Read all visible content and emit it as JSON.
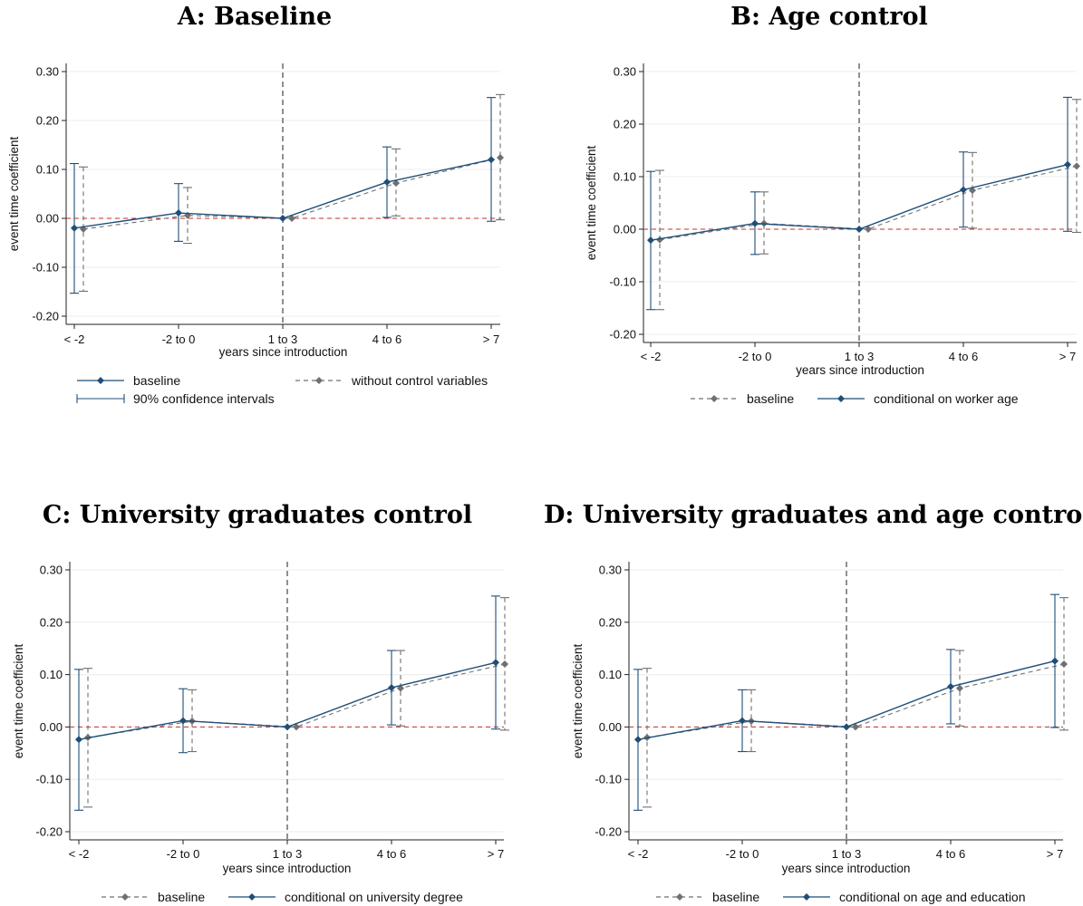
{
  "chart_data": [
    {
      "type": "line",
      "title": "A: Baseline",
      "xlabel": "years since introduction",
      "ylabel": "event time coefficient",
      "categories": [
        "< -2",
        "-2 to 0",
        "1 to 3",
        "4 to 6",
        "> 7"
      ],
      "ylim": [
        -0.2,
        0.3
      ],
      "yticks": [
        "0.30",
        "0.20",
        "0.10",
        "0.00",
        "-0.10",
        "-0.20"
      ],
      "grid": true,
      "reference_line_y": 0,
      "reference_line_x": "1 to 3",
      "series": [
        {
          "name": "baseline",
          "style": "solid",
          "color": "#1f4e79",
          "values": [
            -0.02,
            0.011,
            0.0,
            0.074,
            0.12
          ],
          "ci_low": [
            -0.153,
            -0.047,
            0.0,
            0.002,
            -0.006
          ],
          "ci_high": [
            0.112,
            0.071,
            0.0,
            0.146,
            0.247
          ]
        },
        {
          "name": "without control variables",
          "style": "dashed",
          "color": "#707070",
          "values": [
            -0.022,
            0.006,
            0.0,
            0.072,
            0.124
          ],
          "ci_low": [
            -0.149,
            -0.051,
            0.0,
            0.005,
            -0.003
          ],
          "ci_high": [
            0.105,
            0.063,
            0.0,
            0.142,
            0.253
          ]
        }
      ],
      "legend": {
        "rows": [
          [
            {
              "label": "baseline",
              "style": "solid-diamond"
            },
            {
              "label": "without control variables",
              "style": "dashed-diamond"
            }
          ],
          [
            {
              "label": "90% confidence intervals",
              "style": "ci"
            }
          ]
        ]
      }
    },
    {
      "type": "line",
      "title": "B: Age control",
      "xlabel": "years since introduction",
      "ylabel": "event time coefficient",
      "categories": [
        "< -2",
        "-2 to 0",
        "1 to 3",
        "4 to 6",
        "> 7"
      ],
      "ylim": [
        -0.2,
        0.3
      ],
      "yticks": [
        "0.30",
        "0.20",
        "0.10",
        "0.00",
        "-0.10",
        "-0.20"
      ],
      "grid": true,
      "reference_line_y": 0,
      "reference_line_x": "1 to 3",
      "series": [
        {
          "name": "conditional on worker age",
          "style": "solid",
          "color": "#1f4e79",
          "values": [
            -0.021,
            0.011,
            0.0,
            0.075,
            0.123
          ],
          "ci_low": [
            -0.153,
            -0.048,
            0.0,
            0.004,
            -0.004
          ],
          "ci_high": [
            0.11,
            0.071,
            0.0,
            0.147,
            0.251
          ]
        },
        {
          "name": "baseline",
          "style": "dashed",
          "color": "#707070",
          "values": [
            -0.02,
            0.011,
            0.0,
            0.074,
            0.12
          ],
          "ci_low": [
            -0.153,
            -0.047,
            0.0,
            0.002,
            -0.006
          ],
          "ci_high": [
            0.112,
            0.071,
            0.0,
            0.146,
            0.247
          ]
        }
      ],
      "legend": {
        "rows": [
          [
            {
              "label": "baseline",
              "style": "dashed-diamond"
            },
            {
              "label": "conditional on worker age",
              "style": "solid-diamond"
            }
          ]
        ]
      }
    },
    {
      "type": "line",
      "title": "C: University graduates control",
      "xlabel": "years since introduction",
      "ylabel": "event time coefficient",
      "categories": [
        "< -2",
        "-2 to 0",
        "1 to 3",
        "4 to 6",
        "> 7"
      ],
      "ylim": [
        -0.2,
        0.3
      ],
      "yticks": [
        "0.30",
        "0.20",
        "0.10",
        "0.00",
        "-0.10",
        "-0.20"
      ],
      "grid": true,
      "reference_line_y": 0,
      "reference_line_x": "1 to 3",
      "series": [
        {
          "name": "conditional on university degree",
          "style": "solid",
          "color": "#1f4e79",
          "values": [
            -0.024,
            0.012,
            0.0,
            0.075,
            0.123
          ],
          "ci_low": [
            -0.159,
            -0.049,
            0.0,
            0.004,
            -0.004
          ],
          "ci_high": [
            0.11,
            0.073,
            0.0,
            0.146,
            0.25
          ]
        },
        {
          "name": "baseline",
          "style": "dashed",
          "color": "#707070",
          "values": [
            -0.02,
            0.011,
            0.0,
            0.074,
            0.12
          ],
          "ci_low": [
            -0.153,
            -0.047,
            0.0,
            0.002,
            -0.006
          ],
          "ci_high": [
            0.112,
            0.071,
            0.0,
            0.146,
            0.247
          ]
        }
      ],
      "legend": {
        "rows": [
          [
            {
              "label": "baseline",
              "style": "dashed-diamond"
            },
            {
              "label": "conditional on university degree",
              "style": "solid-diamond"
            }
          ]
        ]
      }
    },
    {
      "type": "line",
      "title": "D: University graduates and age control",
      "xlabel": "years since introduction",
      "ylabel": "event time coefficient",
      "categories": [
        "< -2",
        "-2 to 0",
        "1 to 3",
        "4 to 6",
        "> 7"
      ],
      "ylim": [
        -0.2,
        0.3
      ],
      "yticks": [
        "0.30",
        "0.20",
        "0.10",
        "0.00",
        "-0.10",
        "-0.20"
      ],
      "grid": true,
      "reference_line_y": 0,
      "reference_line_x": "1 to 3",
      "series": [
        {
          "name": "conditional on age and education",
          "style": "solid",
          "color": "#1f4e79",
          "values": [
            -0.024,
            0.012,
            0.0,
            0.077,
            0.126
          ],
          "ci_low": [
            -0.159,
            -0.047,
            0.0,
            0.006,
            -0.001
          ],
          "ci_high": [
            0.11,
            0.071,
            0.0,
            0.148,
            0.253
          ]
        },
        {
          "name": "baseline",
          "style": "dashed",
          "color": "#707070",
          "values": [
            -0.02,
            0.011,
            0.0,
            0.074,
            0.12
          ],
          "ci_low": [
            -0.153,
            -0.047,
            0.0,
            0.002,
            -0.006
          ],
          "ci_high": [
            0.112,
            0.071,
            0.0,
            0.146,
            0.247
          ]
        }
      ],
      "legend": {
        "rows": [
          [
            {
              "label": "baseline",
              "style": "dashed-diamond"
            },
            {
              "label": "conditional on age and education",
              "style": "solid-diamond"
            }
          ]
        ]
      }
    }
  ]
}
